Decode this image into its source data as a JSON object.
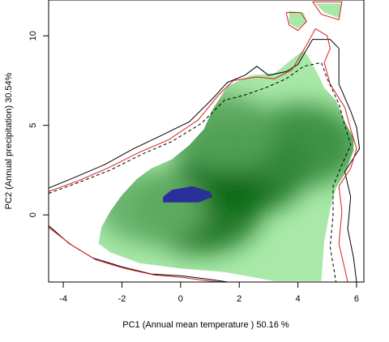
{
  "chart_data": {
    "type": "density_contour",
    "xlabel": "PC1 (Annual mean temperature ) 50.16 %",
    "ylabel": "PC2 (Annual precipitation) 30.54%",
    "xlim": [
      -4.5,
      6.25
    ],
    "ylim": [
      -3.75,
      12.0
    ],
    "xticks": [
      -4,
      -2,
      0,
      2,
      4,
      6
    ],
    "yticks": [
      0,
      5,
      10
    ],
    "grid": false,
    "legend": "none",
    "colors": {
      "density_low": "#a8e8a8",
      "density_high": "#0f6a18",
      "overlap": "#2b2f9a",
      "contour_black": "#000000",
      "contour_red": "#d81e1e"
    },
    "density_polygon": [
      [
        -2.8,
        -1.6
      ],
      [
        -2.7,
        -0.7
      ],
      [
        -2.4,
        0.2
      ],
      [
        -2.0,
        1.1
      ],
      [
        -1.5,
        2.0
      ],
      [
        -1.0,
        2.6
      ],
      [
        -0.3,
        3.1
      ],
      [
        0.3,
        3.9
      ],
      [
        0.8,
        4.8
      ],
      [
        1.1,
        5.9
      ],
      [
        1.6,
        7.2
      ],
      [
        2.4,
        7.8
      ],
      [
        3.2,
        7.9
      ],
      [
        3.8,
        8.7
      ],
      [
        4.2,
        9.2
      ],
      [
        4.4,
        8.7
      ],
      [
        4.7,
        7.8
      ],
      [
        4.9,
        7.1
      ],
      [
        5.3,
        6.4
      ],
      [
        5.6,
        5.2
      ],
      [
        5.9,
        4.3
      ],
      [
        5.9,
        3.6
      ],
      [
        5.6,
        2.3
      ],
      [
        5.3,
        1.5
      ],
      [
        5.1,
        0.3
      ],
      [
        4.9,
        -1.5
      ],
      [
        4.8,
        -3.7
      ],
      [
        3.2,
        -3.7
      ],
      [
        1.5,
        -3.2
      ],
      [
        0.0,
        -3.0
      ],
      [
        -1.4,
        -2.7
      ],
      [
        -2.4,
        -2.1
      ]
    ],
    "density_peaks": [
      {
        "x": 0.6,
        "y": 0.3,
        "level": 0.95
      },
      {
        "x": 2.2,
        "y": 2.6,
        "level": 1.0
      },
      {
        "x": 4.1,
        "y": 3.9,
        "level": 0.75
      },
      {
        "x": -1.0,
        "y": 0.4,
        "level": 0.45
      },
      {
        "x": 1.4,
        "y": 4.6,
        "level": 0.55
      }
    ],
    "island_polygons": [
      [
        [
          3.7,
          11.4
        ],
        [
          4.2,
          11.3
        ],
        [
          4.3,
          10.8
        ],
        [
          4.0,
          10.4
        ],
        [
          3.7,
          10.7
        ]
      ],
      [
        [
          4.6,
          11.8
        ],
        [
          5.5,
          11.8
        ],
        [
          5.4,
          11.0
        ],
        [
          4.9,
          11.3
        ]
      ]
    ],
    "overlap_polygon": [
      [
        -0.6,
        1.0
      ],
      [
        -0.3,
        1.4
      ],
      [
        0.4,
        1.6
      ],
      [
        1.0,
        1.3
      ],
      [
        1.1,
        1.0
      ],
      [
        0.6,
        0.7
      ],
      [
        -0.1,
        0.7
      ],
      [
        -0.6,
        0.7
      ]
    ],
    "contours": [
      {
        "color": "#000000",
        "dash": false,
        "points": [
          [
            -4.5,
            1.5
          ],
          [
            -3.6,
            2.1
          ],
          [
            -2.6,
            2.8
          ],
          [
            -1.6,
            3.7
          ],
          [
            -0.7,
            4.4
          ],
          [
            0.3,
            5.2
          ],
          [
            1.1,
            6.5
          ],
          [
            1.6,
            7.4
          ],
          [
            2.2,
            7.8
          ],
          [
            2.6,
            8.3
          ],
          [
            3.0,
            7.8
          ],
          [
            3.6,
            8.0
          ],
          [
            4.0,
            8.4
          ],
          [
            4.5,
            9.8
          ],
          [
            5.1,
            9.8
          ],
          [
            5.4,
            9.3
          ],
          [
            5.4,
            7.3
          ],
          [
            5.8,
            5.8
          ],
          [
            6.0,
            4.9
          ],
          [
            6.1,
            3.7
          ],
          [
            5.6,
            2.4
          ],
          [
            5.8,
            1.0
          ],
          [
            5.7,
            -0.8
          ],
          [
            5.9,
            -2.4
          ],
          [
            6.0,
            -3.75
          ]
        ]
      },
      {
        "color": "#d81e1e",
        "dash": false,
        "points": [
          [
            -4.5,
            1.3
          ],
          [
            -3.5,
            1.9
          ],
          [
            -2.5,
            2.6
          ],
          [
            -1.4,
            3.5
          ],
          [
            -0.4,
            4.2
          ],
          [
            0.6,
            5.3
          ],
          [
            1.3,
            6.7
          ],
          [
            1.8,
            7.5
          ],
          [
            2.6,
            7.7
          ],
          [
            3.2,
            7.6
          ],
          [
            3.8,
            8.1
          ],
          [
            4.3,
            9.5
          ],
          [
            4.6,
            10.4
          ],
          [
            5.0,
            10.0
          ],
          [
            5.1,
            9.3
          ],
          [
            4.9,
            8.5
          ],
          [
            5.1,
            7.3
          ],
          [
            5.6,
            6.0
          ],
          [
            5.8,
            4.8
          ],
          [
            6.0,
            3.7
          ],
          [
            5.8,
            2.6
          ],
          [
            5.4,
            1.6
          ],
          [
            5.5,
            0.2
          ],
          [
            5.4,
            -1.6
          ],
          [
            5.7,
            -3.75
          ]
        ]
      },
      {
        "color": "#000000",
        "dash": true,
        "points": [
          [
            -4.5,
            1.2
          ],
          [
            -3.5,
            1.8
          ],
          [
            -2.4,
            2.5
          ],
          [
            -1.3,
            3.4
          ],
          [
            -0.3,
            4.1
          ],
          [
            0.7,
            5.1
          ],
          [
            1.5,
            6.4
          ],
          [
            2.2,
            6.7
          ],
          [
            2.9,
            7.1
          ],
          [
            3.6,
            7.6
          ],
          [
            4.2,
            8.3
          ],
          [
            4.8,
            8.5
          ],
          [
            5.0,
            7.6
          ],
          [
            5.4,
            6.2
          ],
          [
            5.6,
            5.0
          ],
          [
            5.8,
            3.9
          ],
          [
            5.5,
            2.8
          ],
          [
            5.2,
            1.6
          ],
          [
            5.2,
            0.0
          ],
          [
            5.1,
            -1.8
          ],
          [
            5.3,
            -3.75
          ]
        ]
      },
      {
        "color": "#000000",
        "dash": false,
        "points": [
          [
            -4.5,
            -0.6
          ],
          [
            -3.8,
            -1.6
          ],
          [
            -3.0,
            -2.4
          ],
          [
            -2.0,
            -2.9
          ],
          [
            -1.0,
            -3.3
          ],
          [
            0.0,
            -3.4
          ],
          [
            1.0,
            -3.6
          ],
          [
            1.6,
            -3.75
          ]
        ]
      },
      {
        "color": "#d81e1e",
        "dash": false,
        "points": [
          [
            -4.5,
            -0.7
          ],
          [
            -3.7,
            -1.7
          ],
          [
            -2.9,
            -2.5
          ],
          [
            -1.9,
            -3.0
          ],
          [
            -0.9,
            -3.35
          ],
          [
            0.1,
            -3.5
          ],
          [
            1.0,
            -3.7
          ],
          [
            1.4,
            -3.75
          ]
        ]
      },
      {
        "color": "#d81e1e",
        "dash": false,
        "points": [
          [
            3.6,
            11.3
          ],
          [
            4.1,
            11.3
          ],
          [
            4.3,
            10.8
          ],
          [
            4.0,
            10.3
          ],
          [
            3.7,
            10.6
          ],
          [
            3.6,
            11.3
          ]
        ]
      },
      {
        "color": "#d81e1e",
        "dash": false,
        "points": [
          [
            4.5,
            11.9
          ],
          [
            5.5,
            11.9
          ],
          [
            5.4,
            10.9
          ],
          [
            4.8,
            11.2
          ],
          [
            4.5,
            11.9
          ]
        ]
      }
    ]
  }
}
